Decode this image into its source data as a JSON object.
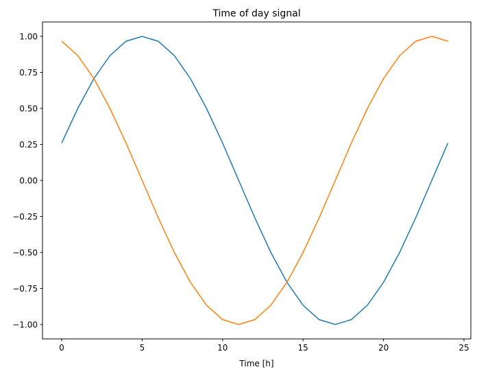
{
  "chart_data": {
    "type": "line",
    "title": "Time of day signal",
    "xlabel": "Time [h]",
    "ylabel": "",
    "xlim": [
      -1.2,
      25.2
    ],
    "ylim": [
      -1.1,
      1.1
    ],
    "xticks": [
      0,
      5,
      10,
      15,
      20,
      25
    ],
    "xtick_labels": [
      "0",
      "5",
      "10",
      "15",
      "20",
      "25"
    ],
    "yticks": [
      1,
      0.75,
      0.5,
      0.25,
      0,
      -0.25,
      -0.5,
      -0.75,
      -1
    ],
    "ytick_labels": [
      "1.00",
      "0.75",
      "0.50",
      "0.25",
      "0.00",
      "−0.25",
      "−0.50",
      "−0.75",
      "−1.00"
    ],
    "grid": false,
    "x": [
      0,
      1,
      2,
      3,
      4,
      5,
      6,
      7,
      8,
      9,
      10,
      11,
      12,
      13,
      14,
      15,
      16,
      17,
      18,
      19,
      20,
      21,
      22,
      23,
      24
    ],
    "series": [
      {
        "color": "#1f77b4",
        "values": [
          0.259,
          0.5,
          0.707,
          0.866,
          0.966,
          1,
          0.966,
          0.866,
          0.707,
          0.5,
          0.259,
          0,
          -0.259,
          -0.5,
          -0.707,
          -0.866,
          -0.966,
          -1,
          -0.966,
          -0.866,
          -0.707,
          -0.5,
          -0.259,
          0,
          0.259
        ]
      },
      {
        "color": "#ff7f0e",
        "values": [
          0.966,
          0.866,
          0.707,
          0.5,
          0.259,
          0,
          -0.259,
          -0.5,
          -0.707,
          -0.866,
          -0.966,
          -1,
          -0.966,
          -0.866,
          -0.707,
          -0.5,
          -0.259,
          0,
          0.259,
          0.5,
          0.707,
          0.866,
          0.966,
          1,
          0.966
        ]
      }
    ]
  }
}
